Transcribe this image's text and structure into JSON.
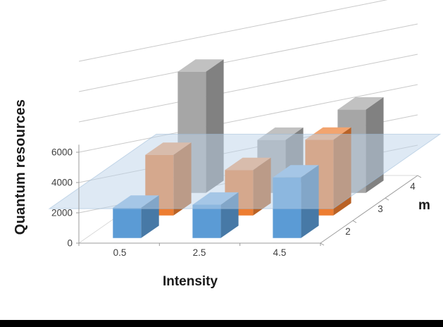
{
  "page": {
    "background": "#ffffff",
    "bottom_bar_color": "#000000"
  },
  "chart_data": {
    "type": "bar",
    "projection": "3d",
    "title": "",
    "xlabel": "Intensity",
    "ylabel": "Quantum resources",
    "zlabel": "m",
    "categories": [
      "0.5",
      "2.5",
      "4.5"
    ],
    "depth_labels": [
      "2",
      "3",
      "4"
    ],
    "series": [
      {
        "name": "m=2",
        "color": "#5B9BD5",
        "values": [
          2000,
          2200,
          4000
        ]
      },
      {
        "name": "m=3",
        "color": "#ED7D31",
        "values": [
          4000,
          3000,
          5000
        ]
      },
      {
        "name": "m=4",
        "color": "#A6A6A6",
        "values": [
          8000,
          3500,
          5500
        ]
      }
    ],
    "y_ticks": [
      0,
      2000,
      4000,
      6000
    ],
    "gridline_values": [
      2000,
      4000,
      6000,
      8000,
      10000,
      12000
    ],
    "ylim": [
      0,
      13000
    ],
    "grid": true,
    "legend": false,
    "plane": {
      "value": 2500,
      "color": "#BDD4EA",
      "opacity": 0.5
    }
  }
}
